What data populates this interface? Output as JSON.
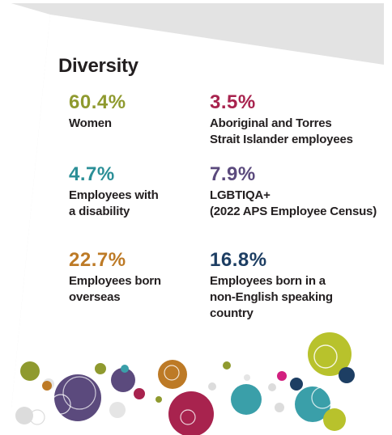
{
  "title": "Diversity",
  "colors": {
    "olive": "#8f9a2f",
    "plum": "#a8234e",
    "teal": "#2b8f97",
    "purple": "#5b4a7d",
    "orange": "#bd7a26",
    "navy": "#1d3e63",
    "panel_border": "#e3e3e3"
  },
  "stats": [
    {
      "value": "60.4%",
      "label_lines": [
        "Women"
      ]
    },
    {
      "value": "3.5%",
      "label_lines": [
        "Aboriginal and Torres",
        "Strait Islander employees"
      ]
    },
    {
      "value": "4.7%",
      "label_lines": [
        "Employees with",
        "a disability"
      ]
    },
    {
      "value": "7.9%",
      "label_lines": [
        "LGBTIQA+",
        "(2022 APS Employee Census)"
      ]
    },
    {
      "value": "22.7%",
      "label_lines": [
        "Employees born",
        "overseas"
      ]
    },
    {
      "value": "16.8%",
      "label_lines": [
        "Employees born in a",
        "non-English speaking",
        "country"
      ]
    }
  ]
}
